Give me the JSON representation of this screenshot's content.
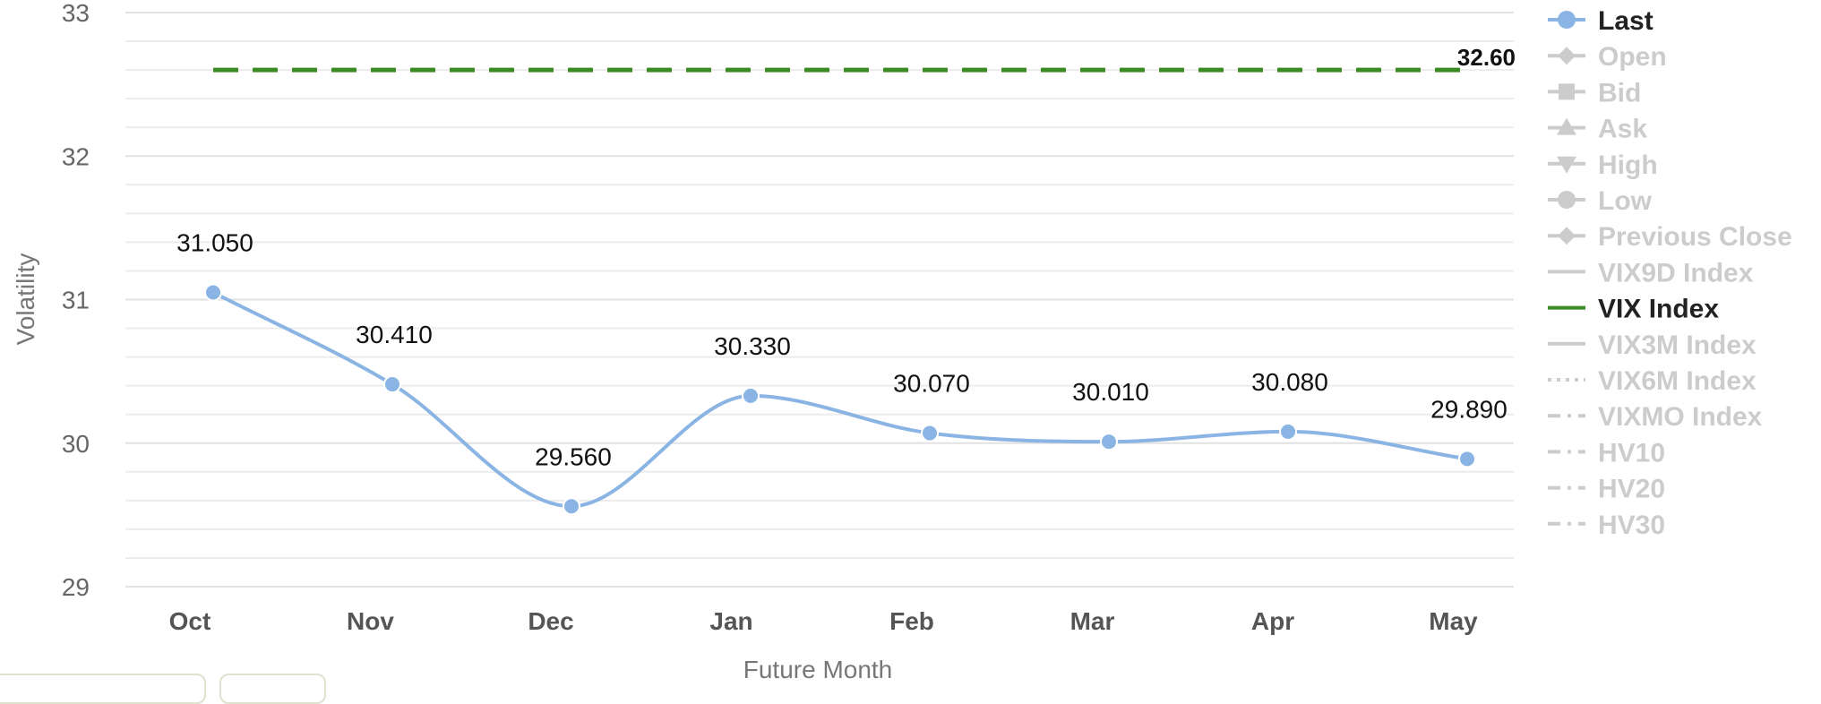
{
  "chart_data": {
    "type": "line",
    "xlabel": "Future Month",
    "ylabel": "Volatility",
    "categories": [
      "Oct",
      "Nov",
      "Dec",
      "Jan",
      "Feb",
      "Mar",
      "Apr",
      "May"
    ],
    "ylim": [
      29,
      33
    ],
    "yticks": [
      "29",
      "30",
      "31",
      "32",
      "33"
    ],
    "grid": true,
    "series": [
      {
        "name": "Last",
        "values": [
          31.05,
          30.41,
          29.56,
          30.33,
          30.07,
          30.01,
          30.08,
          29.89
        ],
        "labels": [
          "31.050",
          "30.410",
          "29.560",
          "30.330",
          "30.070",
          "30.010",
          "30.080",
          "29.890"
        ],
        "color": "#8ab4e3",
        "smooth": true,
        "markers": true
      },
      {
        "name": "VIX Index",
        "constant": 32.6,
        "label": "32.60",
        "color": "#3d8b27",
        "dash": "dashed"
      }
    ],
    "legend": {
      "position": "right",
      "items": [
        {
          "name": "Last",
          "active": true,
          "symbol": "circle",
          "line": "solid",
          "color": "#8ab4e3"
        },
        {
          "name": "Open",
          "active": false,
          "symbol": "diamond",
          "line": "solid",
          "color": "#cccccc"
        },
        {
          "name": "Bid",
          "active": false,
          "symbol": "square",
          "line": "solid",
          "color": "#cccccc"
        },
        {
          "name": "Ask",
          "active": false,
          "symbol": "triangle",
          "line": "solid",
          "color": "#cccccc"
        },
        {
          "name": "High",
          "active": false,
          "symbol": "triangle-down",
          "line": "solid",
          "color": "#cccccc"
        },
        {
          "name": "Low",
          "active": false,
          "symbol": "circle",
          "line": "solid",
          "color": "#cccccc"
        },
        {
          "name": "Previous Close",
          "active": false,
          "symbol": "diamond",
          "line": "solid",
          "color": "#cccccc"
        },
        {
          "name": "VIX9D Index",
          "active": false,
          "symbol": "none",
          "line": "solid",
          "color": "#cccccc"
        },
        {
          "name": "VIX Index",
          "active": true,
          "symbol": "none",
          "line": "solid",
          "color": "#3d8b27"
        },
        {
          "name": "VIX3M Index",
          "active": false,
          "symbol": "none",
          "line": "solid",
          "color": "#cccccc"
        },
        {
          "name": "VIX6M Index",
          "active": false,
          "symbol": "none",
          "line": "dotted",
          "color": "#cccccc"
        },
        {
          "name": "VIXMO Index",
          "active": false,
          "symbol": "none",
          "line": "dashdot",
          "color": "#cccccc"
        },
        {
          "name": "HV10",
          "active": false,
          "symbol": "none",
          "line": "dashdot",
          "color": "#cccccc"
        },
        {
          "name": "HV20",
          "active": false,
          "symbol": "none",
          "line": "dashdot",
          "color": "#cccccc"
        },
        {
          "name": "HV30",
          "active": false,
          "symbol": "none",
          "line": "dashdot",
          "color": "#cccccc"
        }
      ],
      "active_text_color": "#222222",
      "inactive_text_color": "#cccccc"
    }
  }
}
